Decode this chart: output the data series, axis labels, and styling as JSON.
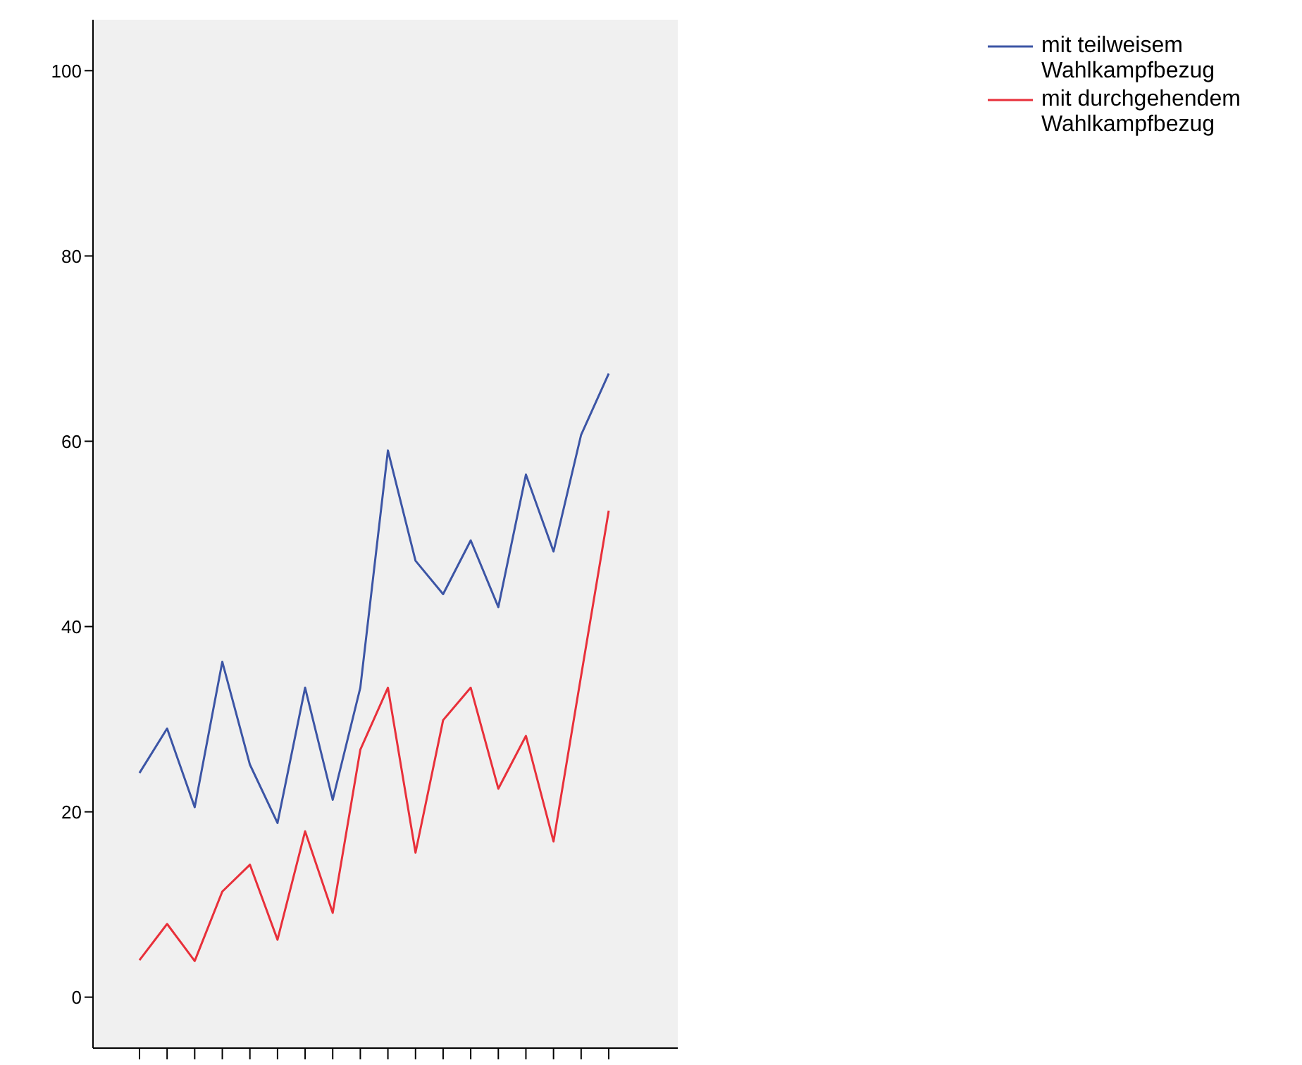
{
  "chart_data": {
    "type": "line",
    "categories": [
      null,
      null,
      null,
      null,
      null,
      null,
      null,
      null,
      null,
      null,
      null,
      null,
      null,
      null,
      null,
      null,
      null,
      null
    ],
    "series": [
      {
        "name": "mit teilweisem Wahlkampfbezug",
        "color": "#3c55a5",
        "values": [
          24.2,
          29,
          20.5,
          36.2,
          25.1,
          18.8,
          33.4,
          21.3,
          33.4,
          59,
          47.1,
          43.5,
          49.3,
          42.1,
          56.4,
          48.1,
          60.7,
          67.3
        ]
      },
      {
        "name": "mit durchgehendem Wahlkampfbezug",
        "color": "#e8303a",
        "values": [
          4,
          7.9,
          3.9,
          11.4,
          14.3,
          6.2,
          17.9,
          9.1,
          26.7,
          33.4,
          15.6,
          29.9,
          33.4,
          22.5,
          28.2,
          16.8,
          34.7,
          52.5
        ]
      }
    ],
    "ylim": [
      -5.5,
      105.5
    ],
    "yticks": [
      0,
      20,
      40,
      60,
      80,
      100
    ],
    "grid": false,
    "legend": "top right",
    "marker": "none",
    "line_style": "solid"
  }
}
